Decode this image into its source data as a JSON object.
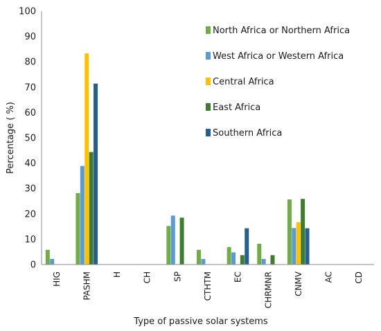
{
  "chart_data": {
    "type": "bar",
    "title": "",
    "xlabel": "Type of passive solar systems",
    "ylabel": "Percentage ( %)",
    "ylim": [
      0,
      100
    ],
    "yticks": [
      0,
      10,
      20,
      30,
      40,
      50,
      60,
      70,
      80,
      90,
      100
    ],
    "grid": false,
    "legend_position": "top-right",
    "categories": [
      "HIG",
      "PASHM",
      "H",
      "CH",
      "SP",
      "CTHTM",
      "EC",
      "CHRMNR",
      "CNMV",
      "AC",
      "CD"
    ],
    "series": [
      {
        "name": "North Africa or Northern Africa",
        "color": "#70ad47",
        "values": [
          5.8,
          28.2,
          0,
          0,
          15.2,
          5.8,
          6.9,
          8.2,
          25.7,
          0,
          0
        ]
      },
      {
        "name": "West Africa or Western Africa",
        "color": "#5b9bd5",
        "values": [
          2.2,
          38.9,
          0,
          0,
          19.3,
          2.2,
          4.8,
          2.2,
          14.4,
          0,
          0
        ]
      },
      {
        "name": "Central Africa",
        "color": "#ffc000",
        "values": [
          0,
          83.3,
          0,
          0,
          0,
          0,
          0,
          0,
          16.7,
          0,
          0
        ]
      },
      {
        "name": "East Africa",
        "color": "#3f7d2e",
        "values": [
          0,
          44.4,
          0,
          0,
          18.5,
          0,
          3.7,
          3.7,
          25.9,
          0,
          0
        ]
      },
      {
        "name": "Southern Africa",
        "color": "#255e91",
        "values": [
          0,
          71.4,
          0,
          0,
          0,
          0,
          14.3,
          0,
          14.3,
          0,
          0
        ]
      }
    ]
  }
}
